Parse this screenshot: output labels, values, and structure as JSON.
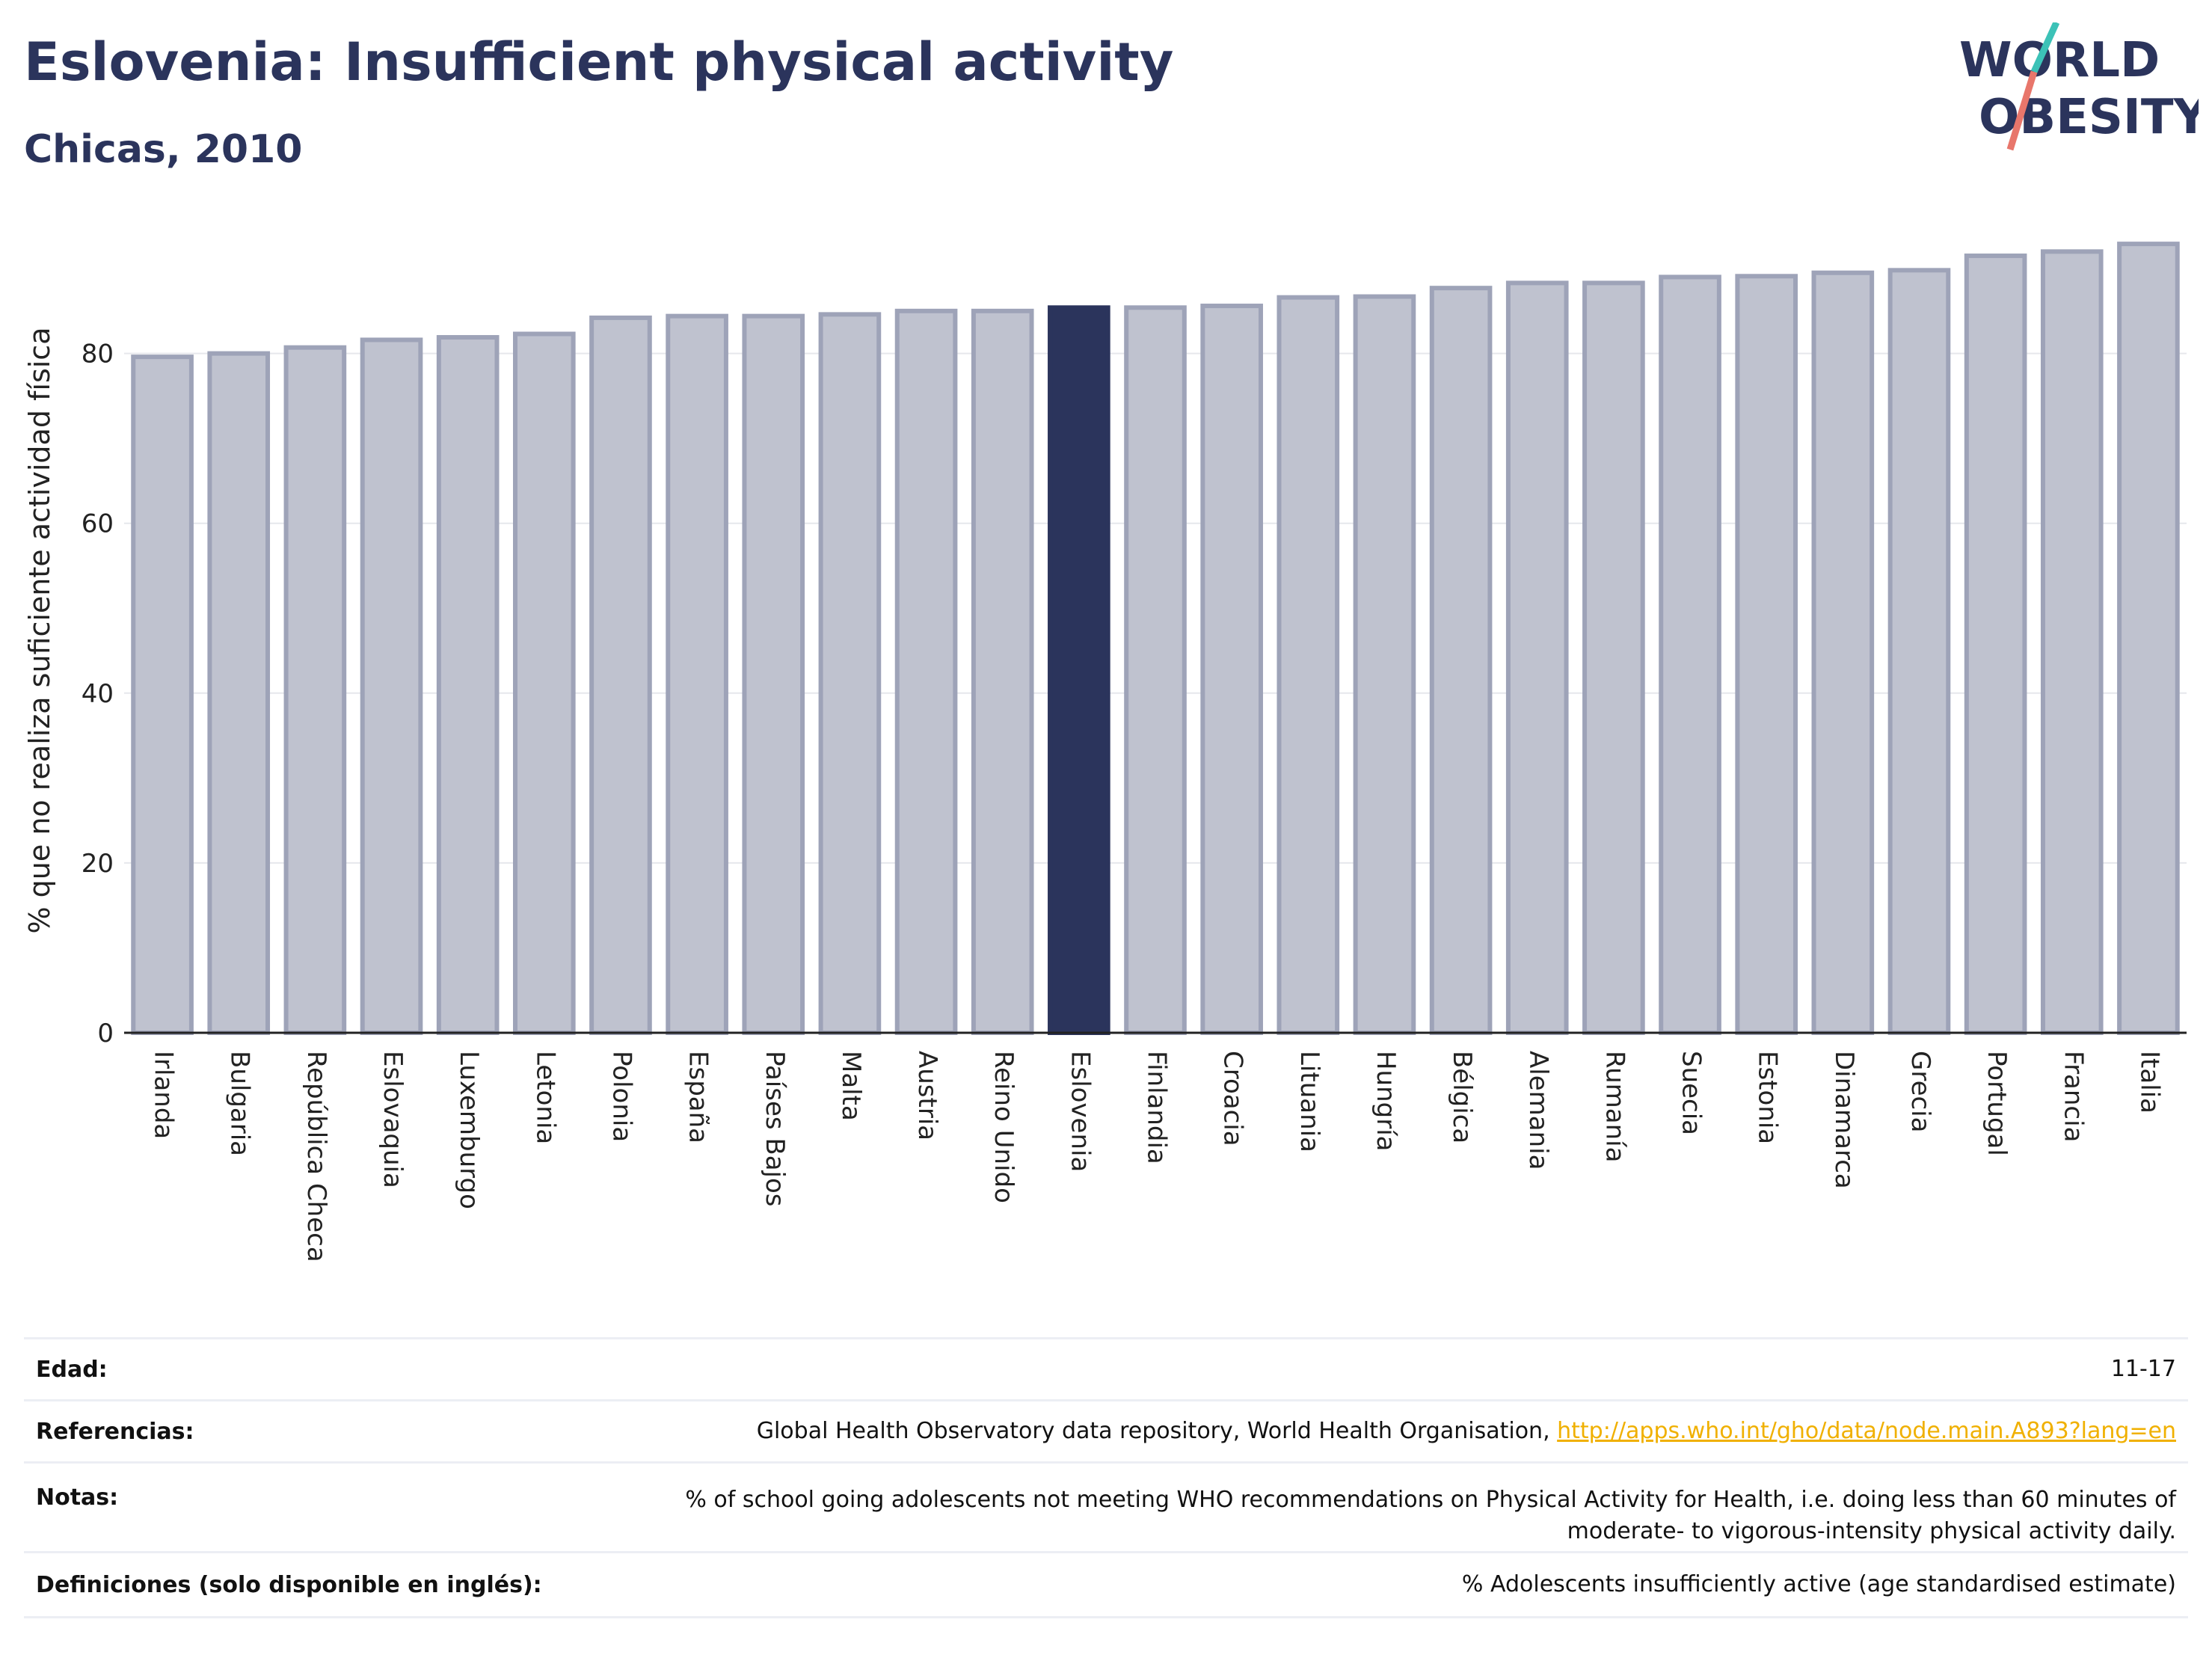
{
  "header": {
    "title": "Eslovenia: Insufficient physical activity",
    "subtitle": "Chicas, 2010"
  },
  "logo": {
    "line1": "WORLD",
    "line2": "OBESITY"
  },
  "colors": {
    "bar_fill": "#bfc2cf",
    "bar_stroke": "#9ea3b8",
    "highlight": "#2b345c",
    "grid": "#e6e7ec",
    "axis": "#222222",
    "logo_teal": "#3cc2b7",
    "logo_coral": "#e8766b"
  },
  "chart_data": {
    "type": "bar",
    "ylabel": "% que no realiza suficiente actividad física",
    "ylim": [
      0,
      93
    ],
    "yticks": [
      0,
      20,
      40,
      60,
      80
    ],
    "grid": true,
    "highlight": "Eslovenia",
    "categories": [
      "Irlanda",
      "Bulgaria",
      "República Checa",
      "Eslovaquia",
      "Luxemburgo",
      "Letonia",
      "Polonia",
      "España",
      "Países Bajos",
      "Malta",
      "Austria",
      "Reino Unido",
      "Eslovenia",
      "Finlandia",
      "Croacia",
      "Lituania",
      "Hungría",
      "Bélgica",
      "Alemania",
      "Rumanía",
      "Suecia",
      "Estonia",
      "Dinamarca",
      "Grecia",
      "Portugal",
      "Francia",
      "Italia"
    ],
    "values": [
      79.6,
      80.0,
      80.7,
      81.6,
      81.9,
      82.3,
      84.2,
      84.4,
      84.4,
      84.6,
      85.0,
      85.0,
      85.4,
      85.4,
      85.6,
      86.6,
      86.7,
      87.7,
      88.3,
      88.3,
      89.0,
      89.1,
      89.5,
      89.8,
      91.5,
      92.0,
      92.9
    ]
  },
  "metadata": [
    {
      "label": "Edad:",
      "value": "11-17"
    },
    {
      "label": "Referencias:",
      "value": "Global Health Observatory data repository, World Health Organisation, ",
      "link": "http://apps.who.int/gho/data/node.main.A893?lang=en"
    },
    {
      "label": "Notas:",
      "value": "% of school going adolescents not meeting WHO recommendations on Physical Activity for Health, i.e. doing less than 60 minutes of moderate- to vigorous-intensity physical activity daily."
    },
    {
      "label": "Definiciones (solo disponible en inglés):",
      "value": "% Adolescents insufficiently active (age standardised estimate)"
    }
  ]
}
